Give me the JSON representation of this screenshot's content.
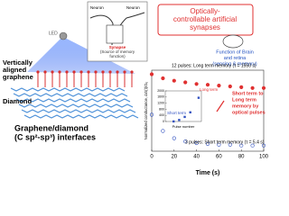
{
  "figure": {
    "led": "LED",
    "graphene": [
      "Vertically",
      "aligned",
      "graphene"
    ],
    "diamond": "Diamond",
    "interface": [
      "Graphene/diamond",
      "(C sp²-sp³) interfaces"
    ],
    "neuron_left": "Neuron",
    "neuron_right": "Neuron",
    "synapse": [
      "Synapse",
      "(Source of memory",
      "function)"
    ],
    "headline": [
      "Optically-",
      "controllable artificial",
      "synapses"
    ],
    "brain": [
      "Function of Brain",
      "and retina",
      "(sensing & memory)"
    ]
  },
  "chart_data": [
    {
      "type": "scatter",
      "y_label": "Normalized conductance, ΔG(t)/G₀",
      "x_label": "Time (s)",
      "x": [
        0,
        10,
        20,
        30,
        40,
        50,
        60,
        70,
        80,
        90,
        100
      ],
      "series": [
        {
          "color": "#e03030",
          "values": [
            0.95,
            0.9,
            0.87,
            0.85,
            0.83,
            0.82,
            0.81,
            0.8,
            0.79,
            0.78,
            0.78
          ]
        },
        {
          "color": "#3050c0",
          "values": [
            0.45,
            0.25,
            0.16,
            0.12,
            0.1,
            0.09,
            0.08,
            0.08,
            0.07,
            0.07,
            0.07
          ]
        }
      ],
      "xlim": [
        0,
        100
      ],
      "xticks": [
        0,
        20,
        40,
        60,
        80,
        100
      ],
      "ylim": [
        0,
        1
      ],
      "annotations": [
        "12 pulses: Long term memory (τ = 1550 s)",
        "3 pulses: Short term memory (τ = 5.4 s)"
      ],
      "callout": [
        "Short term to",
        "Long term",
        "memory by",
        "optical pulses"
      ]
    },
    {
      "type": "scatter",
      "x_label": "Pulse number",
      "x": [
        3,
        5,
        7,
        9,
        12
      ],
      "values": [
        5,
        100,
        300,
        600,
        1550
      ],
      "color": "#3050c0",
      "xlim": [
        0,
        13
      ],
      "ylim": [
        0,
        2000
      ],
      "yticks": [
        0,
        400,
        800,
        1200,
        1600,
        2000
      ],
      "annotations": [
        "Long term",
        "Short term"
      ]
    }
  ]
}
